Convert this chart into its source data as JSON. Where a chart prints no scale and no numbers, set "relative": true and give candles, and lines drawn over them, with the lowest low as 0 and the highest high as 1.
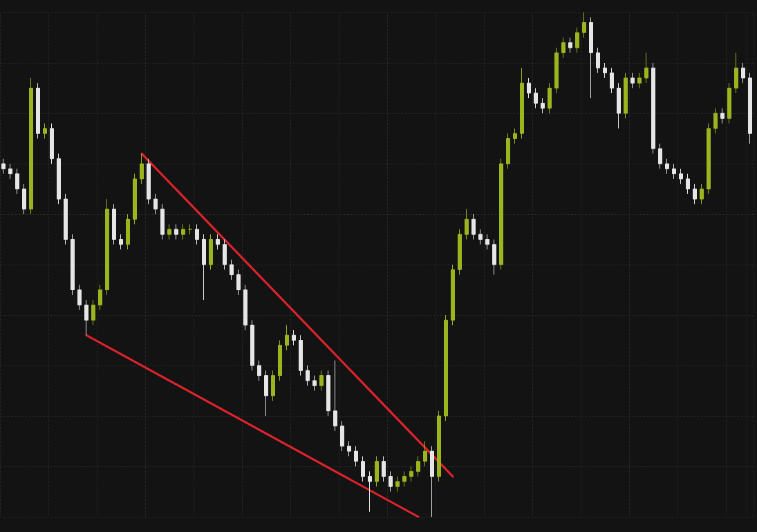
{
  "chart_data": {
    "type": "candlestick",
    "relative": true,
    "grid": true,
    "categories": [
      null,
      null,
      null,
      null,
      null,
      null,
      null,
      null,
      null,
      null,
      null,
      null,
      null,
      null,
      null,
      null,
      null,
      null,
      null,
      null,
      null,
      null,
      null,
      null,
      null,
      null,
      null,
      null,
      null,
      null,
      null,
      null,
      null,
      null,
      null,
      null,
      null,
      null,
      null,
      null,
      null,
      null,
      null,
      null,
      null,
      null,
      null,
      null,
      null,
      null,
      null,
      null,
      null,
      null,
      null,
      null,
      null,
      null,
      null,
      null,
      null,
      null,
      null,
      null,
      null,
      null,
      null,
      null,
      null,
      null,
      null,
      null,
      null,
      null,
      null,
      null,
      null,
      null,
      null,
      null,
      null,
      null,
      null,
      null,
      null,
      null,
      null,
      null,
      null,
      null,
      null,
      null,
      null,
      null,
      null,
      null,
      null,
      null,
      null,
      null,
      null,
      null,
      null,
      null,
      null,
      null,
      null,
      null,
      null
    ],
    "series": [
      {
        "ohlc": [
          [
            0.7,
            0.71,
            0.68,
            0.69
          ],
          [
            0.69,
            0.7,
            0.67,
            0.68
          ],
          [
            0.68,
            0.69,
            0.64,
            0.65
          ],
          [
            0.65,
            0.66,
            0.6,
            0.61
          ],
          [
            0.61,
            0.87,
            0.6,
            0.85
          ],
          [
            0.85,
            0.86,
            0.75,
            0.76
          ],
          [
            0.76,
            0.78,
            0.75,
            0.77
          ],
          [
            0.77,
            0.78,
            0.7,
            0.71
          ],
          [
            0.71,
            0.72,
            0.62,
            0.63
          ],
          [
            0.63,
            0.64,
            0.54,
            0.55
          ],
          [
            0.55,
            0.56,
            0.44,
            0.45
          ],
          [
            0.45,
            0.46,
            0.41,
            0.42
          ],
          [
            0.42,
            0.43,
            0.36,
            0.39
          ],
          [
            0.39,
            0.43,
            0.38,
            0.42
          ],
          [
            0.42,
            0.46,
            0.41,
            0.45
          ],
          [
            0.45,
            0.63,
            0.44,
            0.61
          ],
          [
            0.61,
            0.62,
            0.54,
            0.55
          ],
          [
            0.55,
            0.56,
            0.53,
            0.54
          ],
          [
            0.54,
            0.6,
            0.53,
            0.59
          ],
          [
            0.59,
            0.68,
            0.58,
            0.67
          ],
          [
            0.67,
            0.72,
            0.66,
            0.7
          ],
          [
            0.7,
            0.71,
            0.62,
            0.63
          ],
          [
            0.63,
            0.64,
            0.6,
            0.61
          ],
          [
            0.61,
            0.62,
            0.55,
            0.56
          ],
          [
            0.56,
            0.58,
            0.55,
            0.57
          ],
          [
            0.57,
            0.58,
            0.55,
            0.56
          ],
          [
            0.56,
            0.58,
            0.55,
            0.57
          ],
          [
            0.57,
            0.58,
            0.56,
            0.57
          ],
          [
            0.57,
            0.58,
            0.54,
            0.55
          ],
          [
            0.55,
            0.56,
            0.43,
            0.5
          ],
          [
            0.5,
            0.56,
            0.49,
            0.55
          ],
          [
            0.55,
            0.56,
            0.53,
            0.54
          ],
          [
            0.54,
            0.55,
            0.49,
            0.5
          ],
          [
            0.5,
            0.51,
            0.47,
            0.48
          ],
          [
            0.48,
            0.49,
            0.44,
            0.45
          ],
          [
            0.45,
            0.46,
            0.37,
            0.38
          ],
          [
            0.38,
            0.39,
            0.29,
            0.3
          ],
          [
            0.3,
            0.31,
            0.27,
            0.28
          ],
          [
            0.28,
            0.29,
            0.2,
            0.24
          ],
          [
            0.24,
            0.29,
            0.23,
            0.28
          ],
          [
            0.28,
            0.35,
            0.27,
            0.34
          ],
          [
            0.34,
            0.38,
            0.33,
            0.36
          ],
          [
            0.36,
            0.37,
            0.34,
            0.35
          ],
          [
            0.35,
            0.36,
            0.28,
            0.29
          ],
          [
            0.29,
            0.3,
            0.26,
            0.27
          ],
          [
            0.27,
            0.28,
            0.25,
            0.26
          ],
          [
            0.26,
            0.29,
            0.25,
            0.28
          ],
          [
            0.28,
            0.29,
            0.2,
            0.21
          ],
          [
            0.21,
            0.31,
            0.17,
            0.18
          ],
          [
            0.18,
            0.19,
            0.13,
            0.14
          ],
          [
            0.14,
            0.15,
            0.12,
            0.13
          ],
          [
            0.13,
            0.14,
            0.1,
            0.11
          ],
          [
            0.11,
            0.12,
            0.07,
            0.08
          ],
          [
            0.08,
            0.09,
            0.01,
            0.07
          ],
          [
            0.07,
            0.12,
            0.06,
            0.11
          ],
          [
            0.11,
            0.12,
            0.07,
            0.08
          ],
          [
            0.08,
            0.09,
            0.05,
            0.06
          ],
          [
            0.06,
            0.08,
            0.05,
            0.07
          ],
          [
            0.07,
            0.09,
            0.06,
            0.08
          ],
          [
            0.08,
            0.1,
            0.07,
            0.09
          ],
          [
            0.09,
            0.12,
            0.08,
            0.11
          ],
          [
            0.11,
            0.15,
            0.1,
            0.13
          ],
          [
            0.13,
            0.14,
            0.0,
            0.08
          ],
          [
            0.08,
            0.21,
            0.07,
            0.2
          ],
          [
            0.2,
            0.4,
            0.19,
            0.39
          ],
          [
            0.39,
            0.5,
            0.38,
            0.49
          ],
          [
            0.49,
            0.57,
            0.48,
            0.56
          ],
          [
            0.56,
            0.61,
            0.55,
            0.59
          ],
          [
            0.59,
            0.6,
            0.55,
            0.56
          ],
          [
            0.56,
            0.57,
            0.54,
            0.55
          ],
          [
            0.55,
            0.56,
            0.53,
            0.54
          ],
          [
            0.54,
            0.55,
            0.48,
            0.5
          ],
          [
            0.5,
            0.71,
            0.49,
            0.7
          ],
          [
            0.7,
            0.76,
            0.69,
            0.75
          ],
          [
            0.75,
            0.77,
            0.74,
            0.76
          ],
          [
            0.76,
            0.89,
            0.75,
            0.86
          ],
          [
            0.86,
            0.87,
            0.83,
            0.84
          ],
          [
            0.84,
            0.85,
            0.81,
            0.82
          ],
          [
            0.82,
            0.83,
            0.8,
            0.81
          ],
          [
            0.81,
            0.86,
            0.8,
            0.85
          ],
          [
            0.85,
            0.93,
            0.84,
            0.92
          ],
          [
            0.92,
            0.95,
            0.91,
            0.94
          ],
          [
            0.94,
            0.95,
            0.92,
            0.93
          ],
          [
            0.93,
            0.97,
            0.92,
            0.96
          ],
          [
            0.96,
            1.0,
            0.95,
            0.98
          ],
          [
            0.98,
            0.99,
            0.83,
            0.92
          ],
          [
            0.92,
            0.93,
            0.88,
            0.89
          ],
          [
            0.89,
            0.9,
            0.87,
            0.88
          ],
          [
            0.88,
            0.89,
            0.84,
            0.85
          ],
          [
            0.85,
            0.86,
            0.77,
            0.8
          ],
          [
            0.8,
            0.88,
            0.79,
            0.87
          ],
          [
            0.87,
            0.88,
            0.85,
            0.86
          ],
          [
            0.86,
            0.88,
            0.85,
            0.87
          ],
          [
            0.87,
            0.92,
            0.86,
            0.89
          ],
          [
            0.89,
            0.9,
            0.72,
            0.73
          ],
          [
            0.73,
            0.74,
            0.69,
            0.7
          ],
          [
            0.7,
            0.71,
            0.68,
            0.69
          ],
          [
            0.69,
            0.7,
            0.67,
            0.68
          ],
          [
            0.68,
            0.69,
            0.66,
            0.67
          ],
          [
            0.67,
            0.68,
            0.64,
            0.65
          ],
          [
            0.65,
            0.66,
            0.62,
            0.63
          ],
          [
            0.63,
            0.66,
            0.62,
            0.65
          ],
          [
            0.65,
            0.78,
            0.64,
            0.77
          ],
          [
            0.77,
            0.81,
            0.76,
            0.8
          ],
          [
            0.8,
            0.81,
            0.78,
            0.79
          ],
          [
            0.79,
            0.86,
            0.78,
            0.85
          ],
          [
            0.85,
            0.92,
            0.84,
            0.89
          ],
          [
            0.89,
            0.9,
            0.86,
            0.87
          ],
          [
            0.87,
            0.88,
            0.74,
            0.76
          ]
        ],
        "colors": [
          "#e6e6e6",
          "#e6e6e6",
          "#e6e6e6",
          "#e6e6e6",
          "#9bb51e",
          "#e6e6e6",
          "#9bb51e",
          "#e6e6e6",
          "#e6e6e6",
          "#e6e6e6",
          "#e6e6e6",
          "#e6e6e6",
          "#e6e6e6",
          "#9bb51e",
          "#9bb51e",
          "#9bb51e",
          "#e6e6e6",
          "#e6e6e6",
          "#9bb51e",
          "#9bb51e",
          "#9bb51e",
          "#e6e6e6",
          "#e6e6e6",
          "#e6e6e6",
          "#9bb51e",
          "#e6e6e6",
          "#9bb51e",
          "#9bb51e",
          "#e6e6e6",
          "#e6e6e6",
          "#9bb51e",
          "#e6e6e6",
          "#e6e6e6",
          "#e6e6e6",
          "#e6e6e6",
          "#e6e6e6",
          "#e6e6e6",
          "#e6e6e6",
          "#e6e6e6",
          "#9bb51e",
          "#9bb51e",
          "#9bb51e",
          "#e6e6e6",
          "#e6e6e6",
          "#e6e6e6",
          "#e6e6e6",
          "#9bb51e",
          "#e6e6e6",
          "#e6e6e6",
          "#e6e6e6",
          "#e6e6e6",
          "#e6e6e6",
          "#e6e6e6",
          "#e6e6e6",
          "#9bb51e",
          "#e6e6e6",
          "#e6e6e6",
          "#9bb51e",
          "#9bb51e",
          "#9bb51e",
          "#9bb51e",
          "#9bb51e",
          "#e6e6e6",
          "#9bb51e",
          "#9bb51e",
          "#9bb51e",
          "#9bb51e",
          "#9bb51e",
          "#e6e6e6",
          "#e6e6e6",
          "#e6e6e6",
          "#e6e6e6",
          "#9bb51e",
          "#9bb51e",
          "#9bb51e",
          "#9bb51e",
          "#e6e6e6",
          "#e6e6e6",
          "#e6e6e6",
          "#9bb51e",
          "#9bb51e",
          "#9bb51e",
          "#e6e6e6",
          "#9bb51e",
          "#9bb51e",
          "#e6e6e6",
          "#e6e6e6",
          "#e6e6e6",
          "#e6e6e6",
          "#e6e6e6",
          "#9bb51e",
          "#e6e6e6",
          "#9bb51e",
          "#9bb51e",
          "#e6e6e6",
          "#e6e6e6",
          "#e6e6e6",
          "#e6e6e6",
          "#e6e6e6",
          "#e6e6e6",
          "#e6e6e6",
          "#9bb51e",
          "#9bb51e",
          "#9bb51e",
          "#e6e6e6",
          "#9bb51e",
          "#9bb51e",
          "#e6e6e6",
          "#e6e6e6"
        ]
      },
      {
        "type": "line",
        "color": "#e3232c",
        "values": [
          null,
          null,
          null,
          null,
          null,
          null,
          null,
          null,
          null,
          null,
          null,
          null,
          null,
          null,
          null,
          null,
          null,
          null,
          null,
          null,
          0.72,
          null,
          null,
          null,
          null,
          null,
          null,
          null,
          null,
          null,
          null,
          null,
          null,
          null,
          null,
          null,
          null,
          null,
          null,
          null,
          null,
          null,
          null,
          null,
          null,
          null,
          null,
          null,
          null,
          null,
          null,
          null,
          null,
          null,
          null,
          null,
          null,
          null,
          null,
          null,
          null,
          null,
          null,
          null,
          null,
          0.08,
          null,
          null,
          null,
          null,
          null,
          null,
          null,
          null,
          null,
          null,
          null,
          null,
          null,
          null,
          null,
          null,
          null,
          null,
          null,
          null,
          null,
          null,
          null,
          null,
          null,
          null,
          null,
          null,
          null,
          null,
          null,
          null,
          null,
          null,
          null,
          null,
          null,
          null,
          null,
          null,
          null,
          null,
          null
        ]
      },
      {
        "type": "line",
        "color": "#e3232c",
        "values": [
          null,
          null,
          null,
          null,
          null,
          null,
          null,
          null,
          null,
          null,
          null,
          null,
          0.36,
          null,
          null,
          null,
          null,
          null,
          null,
          null,
          null,
          null,
          null,
          null,
          null,
          null,
          null,
          null,
          null,
          null,
          null,
          null,
          null,
          null,
          null,
          null,
          null,
          null,
          null,
          null,
          null,
          null,
          null,
          null,
          null,
          null,
          null,
          null,
          null,
          null,
          null,
          null,
          null,
          null,
          null,
          null,
          null,
          null,
          null,
          null,
          0.0,
          null,
          null,
          null,
          null,
          null,
          null,
          null,
          null,
          null,
          null,
          null,
          null,
          null,
          null,
          null,
          null,
          null,
          null,
          null,
          null,
          null,
          null,
          null,
          null,
          null,
          null,
          null,
          null,
          null,
          null,
          null,
          null,
          null,
          null,
          null,
          null,
          null,
          null,
          null,
          null,
          null,
          null,
          null,
          null,
          null,
          null,
          null,
          null
        ]
      }
    ]
  }
}
